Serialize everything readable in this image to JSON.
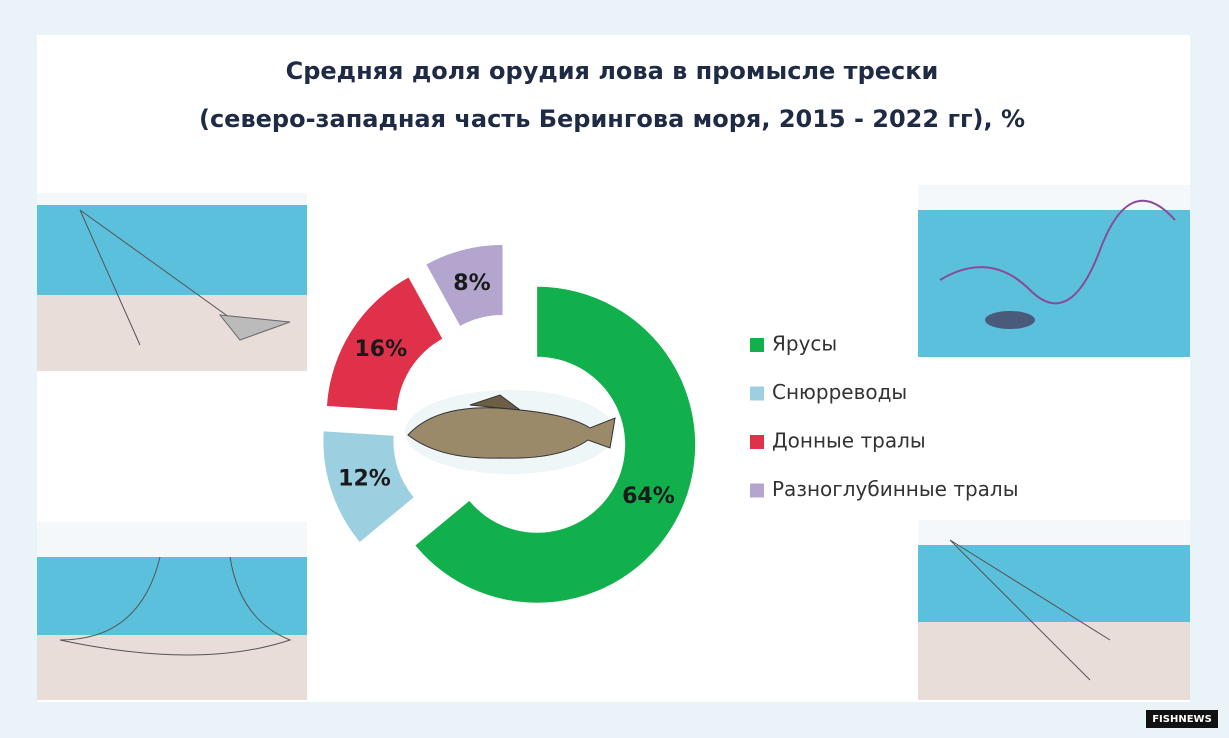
{
  "chart_data": {
    "type": "donut",
    "title": "Средняя доля орудия лова в промысле трески",
    "subtitle": "(северо-западная часть Берингова моря, 2015 - 2022 гг), %",
    "categories": [
      "Ярусы",
      "Снюрреводы",
      "Донные тралы",
      "Разноглубинные тралы"
    ],
    "values": [
      64,
      12,
      16,
      8
    ],
    "value_labels": [
      "64%",
      "12%",
      "16%",
      "8%"
    ],
    "colors": [
      "#12b04c",
      "#9ccfe0",
      "#e0314b",
      "#b3a5cd"
    ],
    "legend": "right"
  },
  "watermark": "FISHNEWS"
}
